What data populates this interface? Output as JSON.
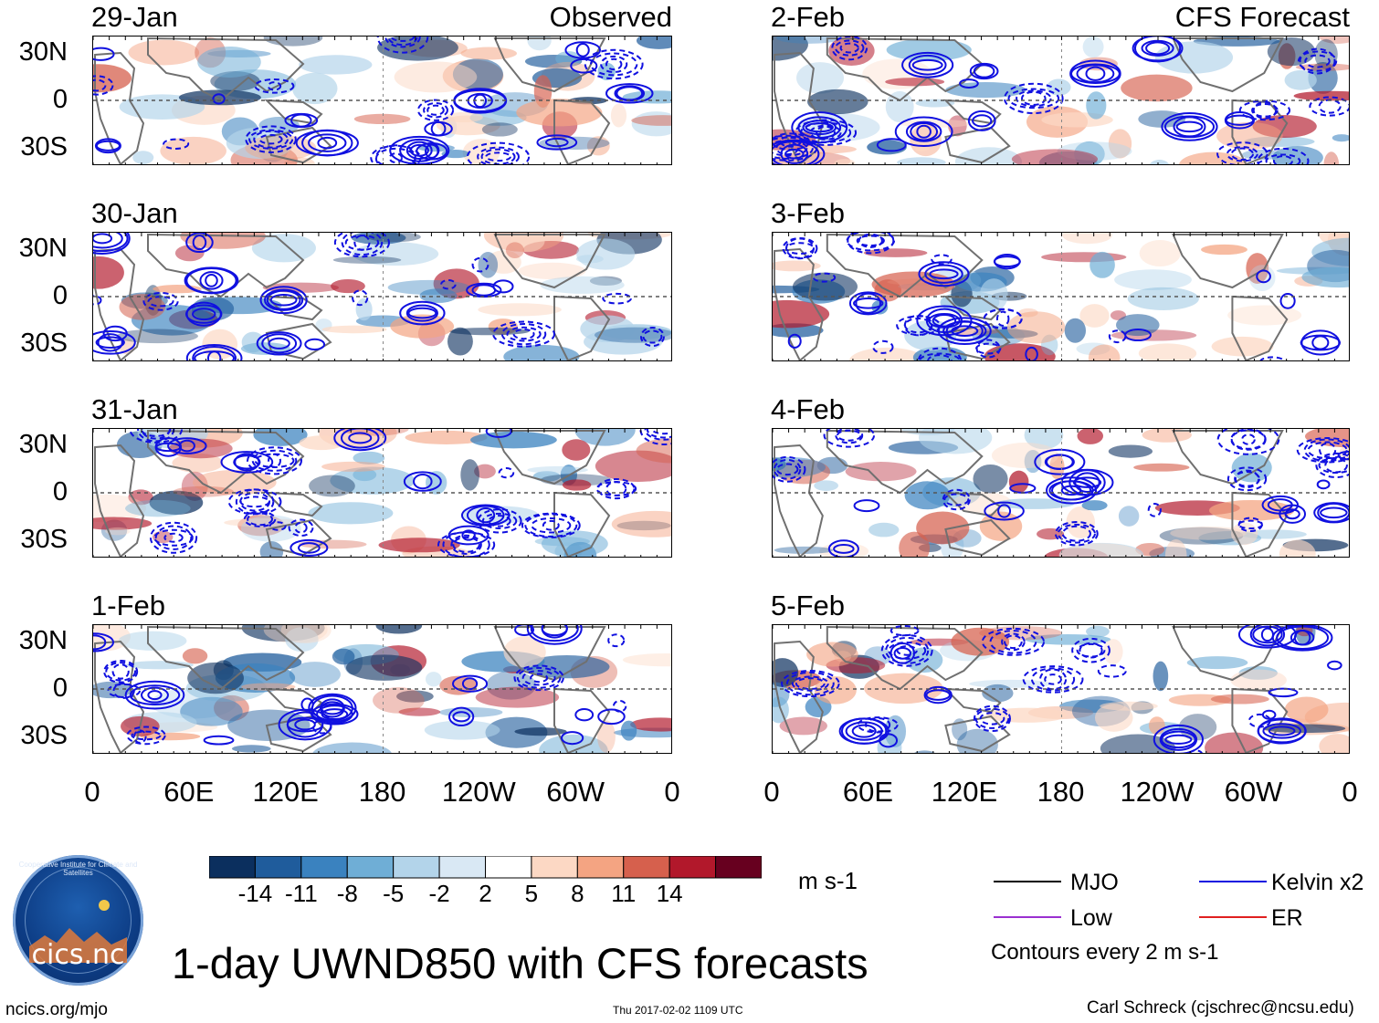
{
  "chart_data": {
    "type": "heatmap",
    "title": "1-day UWND850 with CFS forecasts",
    "variable": "UWND850",
    "units": "m s-1",
    "x_ticks": [
      "0",
      "60E",
      "120E",
      "180",
      "120W",
      "60W",
      "0"
    ],
    "y_ticks": [
      "30N",
      "0",
      "30S"
    ],
    "observed_label": "Observed",
    "forecast_label": "CFS Forecast",
    "observed_panels": [
      {
        "date": "29-Jan"
      },
      {
        "date": "30-Jan"
      },
      {
        "date": "31-Jan"
      },
      {
        "date": "1-Feb"
      }
    ],
    "forecast_panels": [
      {
        "date": "2-Feb"
      },
      {
        "date": "3-Feb"
      },
      {
        "date": "4-Feb"
      },
      {
        "date": "5-Feb"
      }
    ],
    "colorbar": {
      "levels": [
        "-14",
        "-11",
        "-8",
        "-5",
        "-2",
        "2",
        "5",
        "8",
        "11",
        "14"
      ],
      "colors": [
        "#0b2f5e",
        "#1f5c9c",
        "#3a82bf",
        "#6faed6",
        "#b3d4ea",
        "#d9e8f4",
        "#ffffff",
        "#fcd8c4",
        "#f4a482",
        "#d6604d",
        "#b2182b",
        "#67001f"
      ]
    },
    "legend": [
      {
        "label": "MJO",
        "color": "#000000"
      },
      {
        "label": "Kelvin x2",
        "color": "#1010e0"
      },
      {
        "label": "Low",
        "color": "#9a30d0"
      },
      {
        "label": "ER",
        "color": "#e02020"
      }
    ],
    "contour_note": "Contours every 2 m s-1"
  },
  "footer": {
    "logo_text": "cics.nc",
    "logo_ring_text": "Cooperative Institute for Climate and Satellites",
    "site": "ncics.org/mjo",
    "timestamp": "Thu 2017-02-02 1109 UTC",
    "author": "Carl Schreck (cjschrec@ncsu.edu)"
  }
}
